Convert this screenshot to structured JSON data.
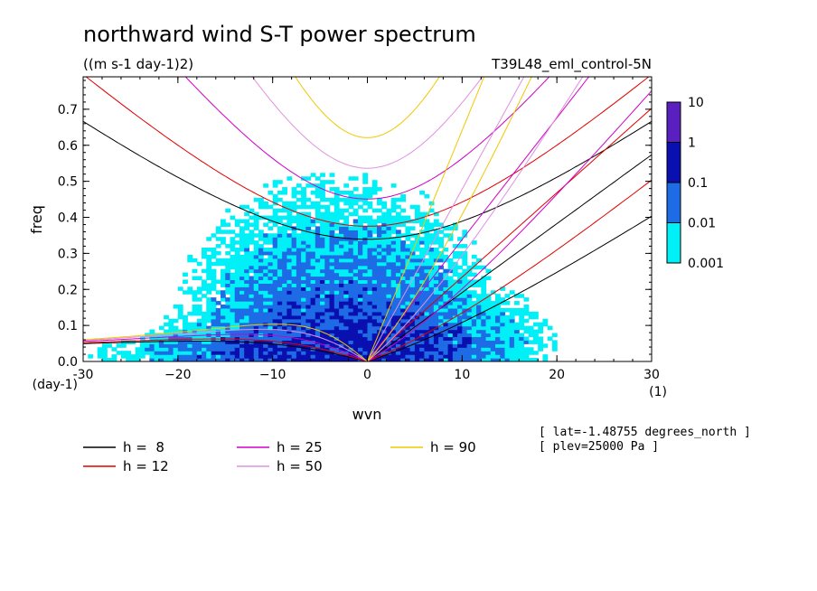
{
  "chart_data": {
    "type": "heatmap",
    "title": "northward wind S-T power spectrum",
    "units": "((m s-1 day-1)2)",
    "experiment": "T39L48_eml_control-5N",
    "xlabel": "wvn",
    "ylabel": "freq",
    "x_unit": "(1)",
    "y_unit": "(day-1)",
    "xlim": [
      -30,
      30
    ],
    "ylim": [
      0,
      0.79
    ],
    "x_ticks": [
      -30,
      -20,
      -10,
      0,
      10,
      20,
      30
    ],
    "x_tick_labels": [
      "-30",
      "−20",
      "−10",
      "0",
      "10",
      "20",
      "30"
    ],
    "y_ticks": [
      0.0,
      0.1,
      0.2,
      0.3,
      0.4,
      0.5,
      0.6,
      0.7
    ],
    "y_tick_labels": [
      "0.0",
      "0.1",
      "0.2",
      "0.3",
      "0.4",
      "0.5",
      "0.6",
      "0.7"
    ],
    "colorbar": {
      "levels": [
        "10",
        "1",
        "0.1",
        "0.01",
        "0.001"
      ],
      "colors": [
        "#5a1fbf",
        "#0a0fb0",
        "#1e6be6",
        "#00f0f8"
      ]
    },
    "dispersion_curves": [
      {
        "label": "h =  8",
        "h": 8,
        "color": "#000000"
      },
      {
        "label": "h = 12",
        "h": 12,
        "color": "#e00000"
      },
      {
        "label": "h = 25",
        "h": 25,
        "color": "#d000c8"
      },
      {
        "label": "h = 50",
        "h": 50,
        "color": "#e090e0"
      },
      {
        "label": "h = 90",
        "h": 90,
        "color": "#f0c800"
      }
    ],
    "annotations": [
      "[ lat=-1.48755 degrees_north ]",
      "[ plev=25000 Pa ]"
    ]
  }
}
